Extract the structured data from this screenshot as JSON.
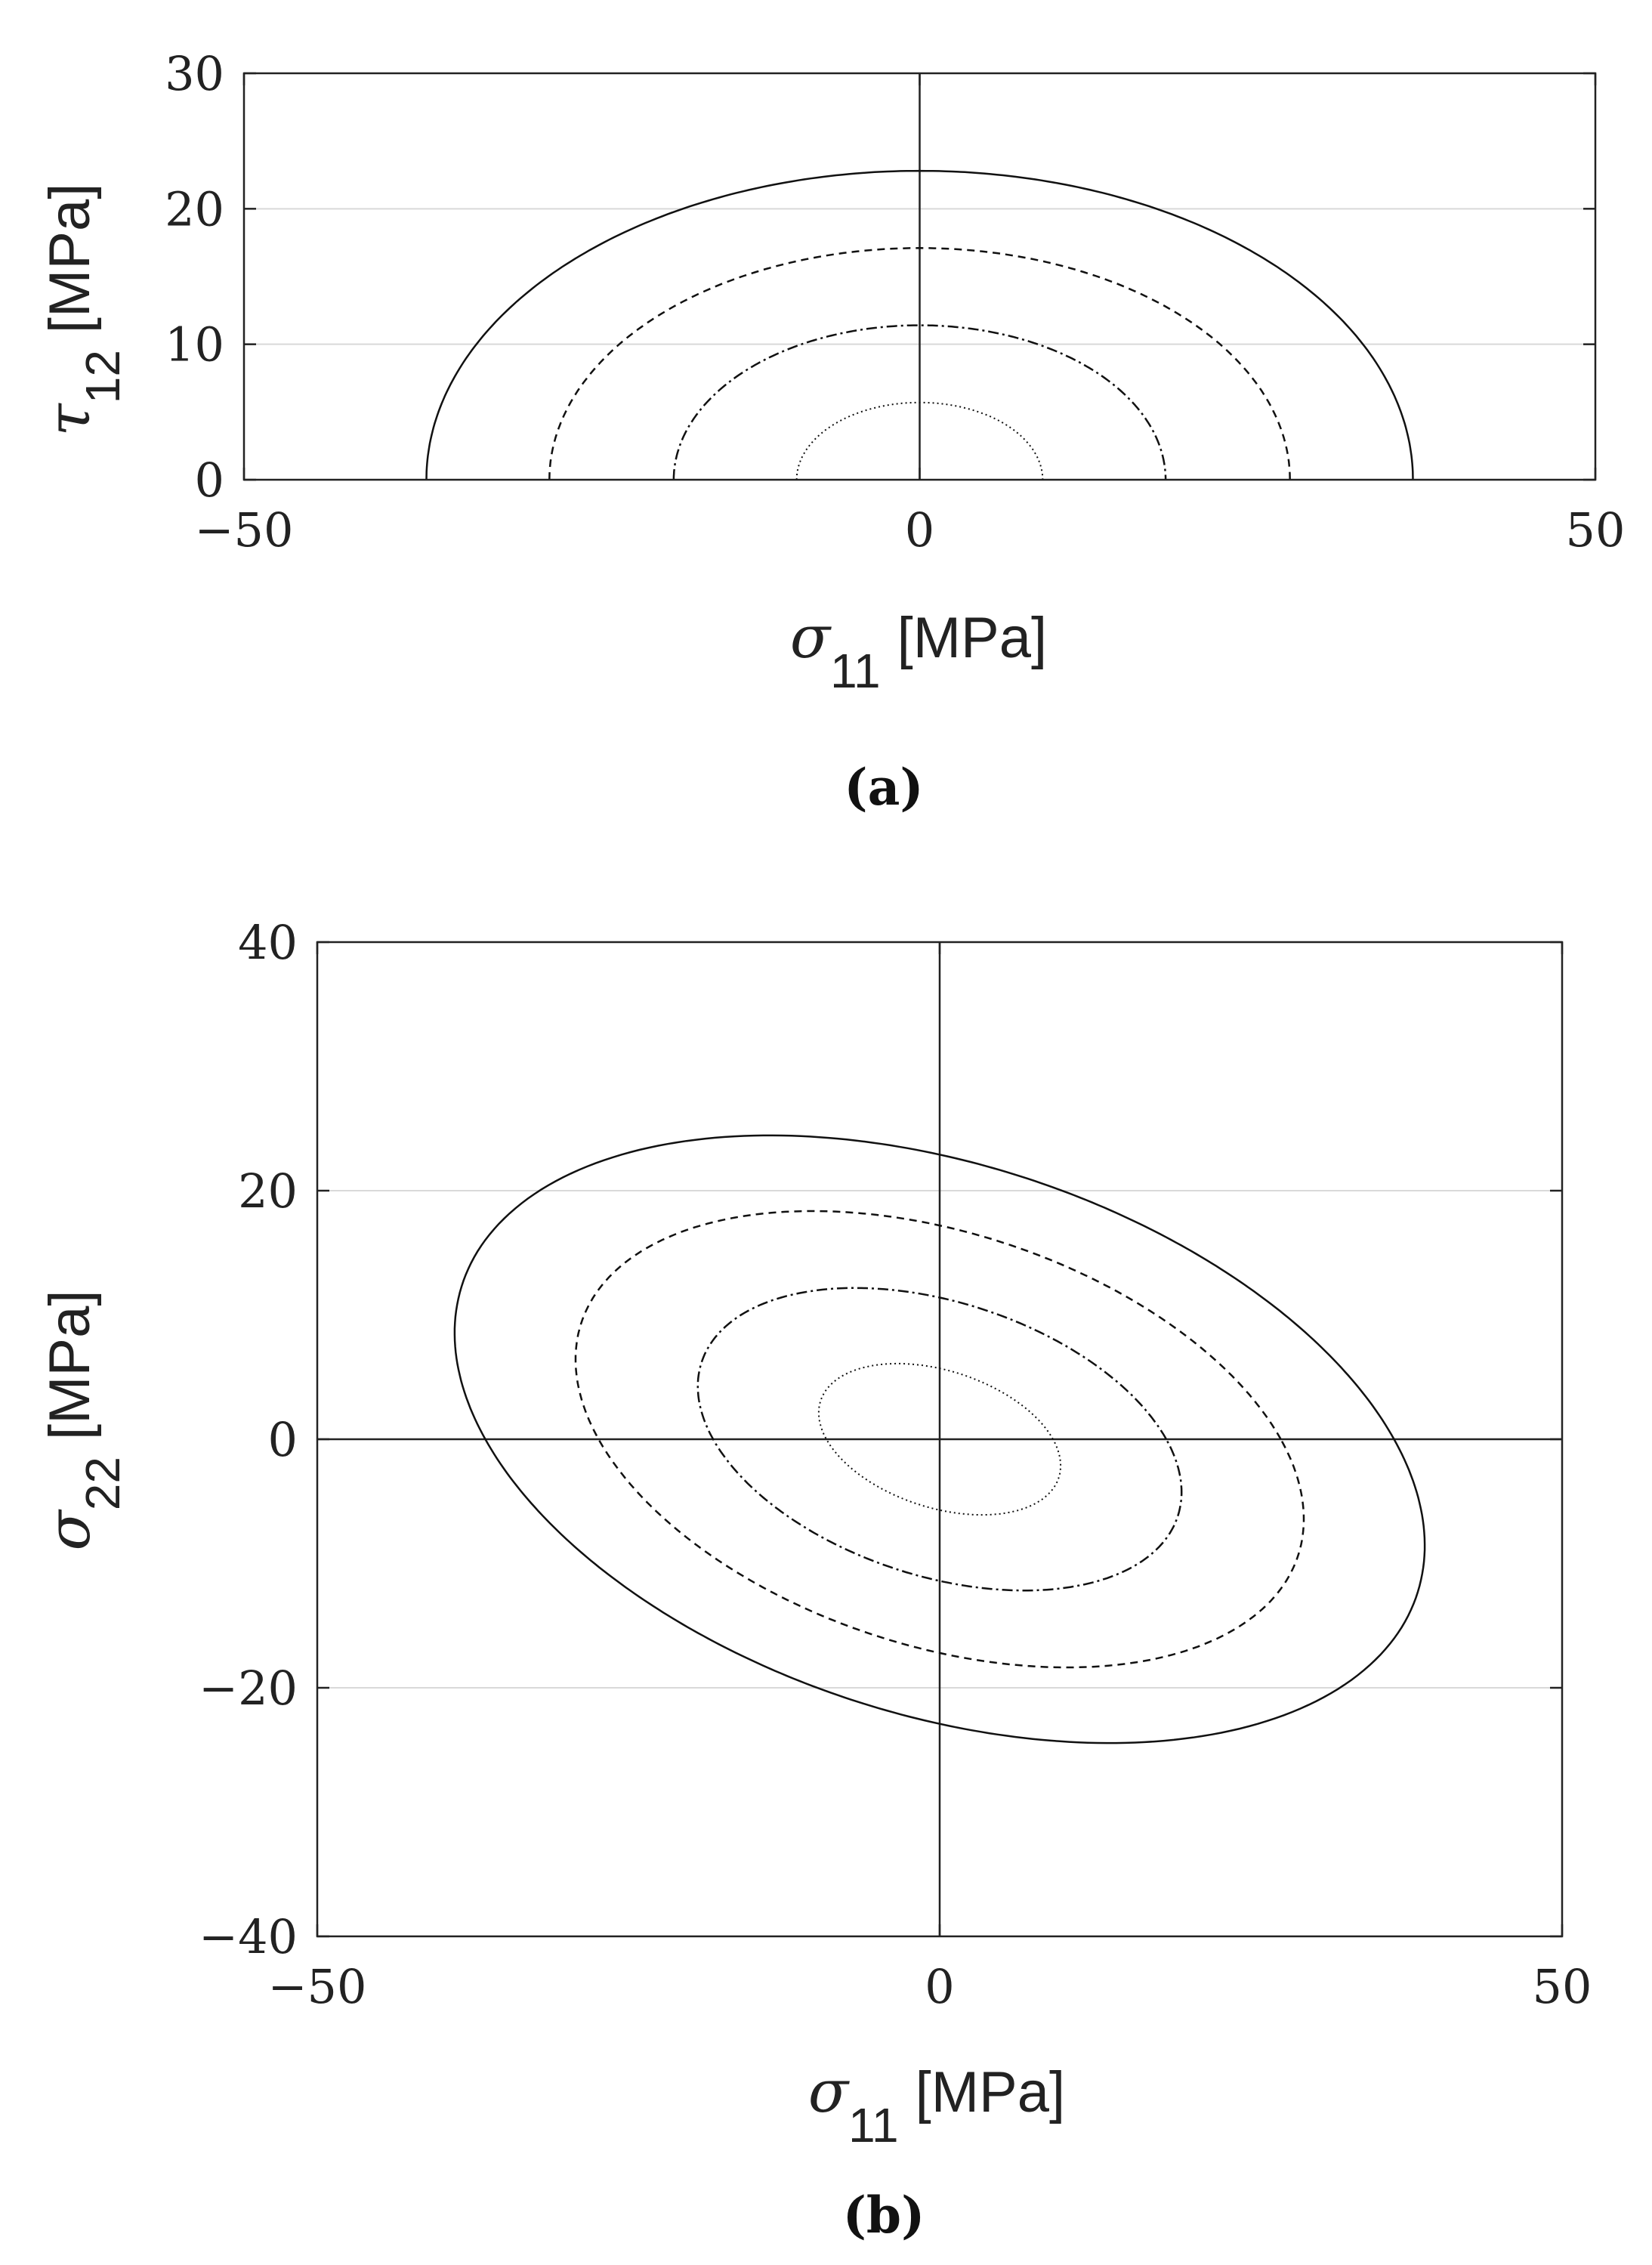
{
  "chart_data": [
    {
      "type": "line",
      "panel_label": "(a)",
      "xlabel": {
        "symbol": "σ",
        "subscript": "11",
        "unit": "[MPa]"
      },
      "ylabel": {
        "symbol": "τ",
        "subscript": "12",
        "unit": "[MPa]"
      },
      "xlim": [
        -50,
        50
      ],
      "ylim": [
        0,
        30
      ],
      "xticks": [
        -50,
        0,
        50
      ],
      "xtick_labels": [
        "−50",
        "0",
        "50"
      ],
      "yticks": [
        0,
        10,
        20,
        30
      ],
      "ytick_labels": [
        "0",
        "10",
        "20",
        "30"
      ],
      "grid": "horizontal",
      "zero_lines": [
        "x=0"
      ],
      "series": [
        {
          "style": "solid",
          "x_half_width": 36.5,
          "y_max": 22.8
        },
        {
          "style": "dashed",
          "x_half_width": 27.4,
          "y_max": 17.1
        },
        {
          "style": "dashdot",
          "x_half_width": 18.2,
          "y_max": 11.4
        },
        {
          "style": "dotted",
          "x_half_width": 9.1,
          "y_max": 5.7
        }
      ]
    },
    {
      "type": "line",
      "panel_label": "(b)",
      "xlabel": {
        "symbol": "σ",
        "subscript": "11",
        "unit": "[MPa]"
      },
      "ylabel": {
        "symbol": "σ",
        "subscript": "22",
        "unit": "[MPa]"
      },
      "xlim": [
        -50,
        50
      ],
      "ylim": [
        -40,
        40
      ],
      "xticks": [
        -50,
        0,
        50
      ],
      "xtick_labels": [
        "−50",
        "0",
        "50"
      ],
      "yticks": [
        -40,
        -20,
        0,
        20,
        40
      ],
      "ytick_labels": [
        "−40",
        "−20",
        "0",
        "20",
        "40"
      ],
      "grid": "horizontal",
      "zero_lines": [
        "x=0",
        "y=0"
      ],
      "series": [
        {
          "style": "solid",
          "x_intercept": 36.5,
          "y_intercept": 22.9,
          "coupling": 0.35
        },
        {
          "style": "dashed",
          "x_intercept": 27.4,
          "y_intercept": 17.2,
          "coupling": 0.35
        },
        {
          "style": "dashdot",
          "x_intercept": 18.2,
          "y_intercept": 11.4,
          "coupling": 0.35
        },
        {
          "style": "dotted",
          "x_intercept": 9.1,
          "y_intercept": 5.7,
          "coupling": 0.35
        }
      ]
    }
  ]
}
